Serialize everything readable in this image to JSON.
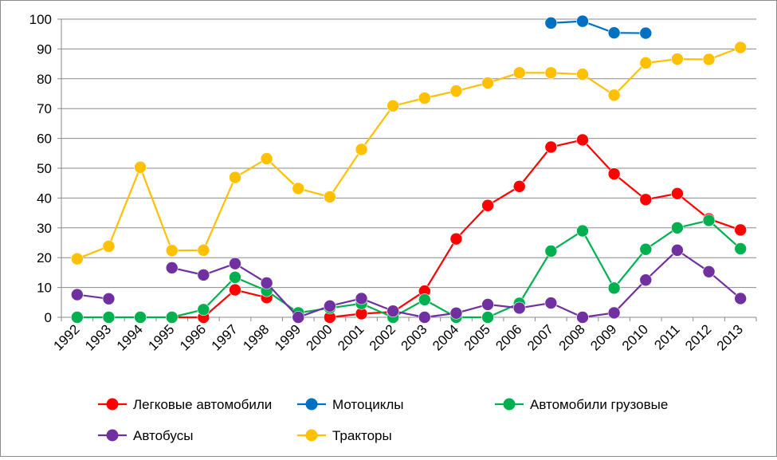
{
  "chart_data": {
    "type": "line",
    "title": "",
    "xlabel": "",
    "ylabel": "",
    "ylim": [
      0,
      100
    ],
    "yticks": [
      0,
      10,
      20,
      30,
      40,
      50,
      60,
      70,
      80,
      90,
      100
    ],
    "grid": true,
    "legend": "bottom",
    "categories": [
      "1992",
      "1993",
      "1994",
      "1995",
      "1996",
      "1997",
      "1998",
      "1999",
      "2000",
      "2001",
      "2002",
      "2003",
      "2004",
      "2005",
      "2006",
      "2007",
      "2008",
      "2009",
      "2010",
      "2011",
      "2012",
      "2013"
    ],
    "series": [
      {
        "name": "Легковые автомобили",
        "color": "#ff0000",
        "values": [
          null,
          null,
          null,
          0,
          0,
          9.2,
          6.6,
          null,
          0,
          1.2,
          1.8,
          8.8,
          26.3,
          37.5,
          43.9,
          57.1,
          59.5,
          48.1,
          39.5,
          41.5,
          33,
          29.3
        ]
      },
      {
        "name": "Мотоциклы",
        "color": "#0070c0",
        "values": [
          null,
          null,
          null,
          null,
          null,
          null,
          null,
          null,
          null,
          null,
          null,
          null,
          null,
          null,
          null,
          98.7,
          99.3,
          95.4,
          95.3,
          null,
          null,
          null
        ]
      },
      {
        "name": "Автомобили грузовые",
        "color": "#00b050",
        "values": [
          0,
          0,
          0,
          0,
          2.6,
          13.4,
          8.9,
          1.5,
          3.1,
          4.6,
          0,
          5.9,
          0,
          0,
          4.7,
          22.2,
          29,
          9.8,
          22.8,
          30,
          32.5,
          23
        ]
      },
      {
        "name": "Автобусы",
        "color": "#7030a0",
        "values": [
          7.6,
          6.2,
          null,
          16.6,
          14.2,
          18,
          11.5,
          0,
          3.8,
          6.3,
          2.1,
          0,
          1.4,
          4.3,
          3.1,
          4.8,
          0,
          1.5,
          12.5,
          22.5,
          15.3,
          6.3
        ]
      },
      {
        "name": "Тракторы",
        "color": "#ffc000",
        "values": [
          19.6,
          23.8,
          50.3,
          22.4,
          22.5,
          46.9,
          53.2,
          43.2,
          40.4,
          56.3,
          70.9,
          73.5,
          75.9,
          78.6,
          82,
          82,
          81.5,
          74.5,
          85.3,
          86.6,
          86.5,
          90.5
        ]
      }
    ]
  }
}
